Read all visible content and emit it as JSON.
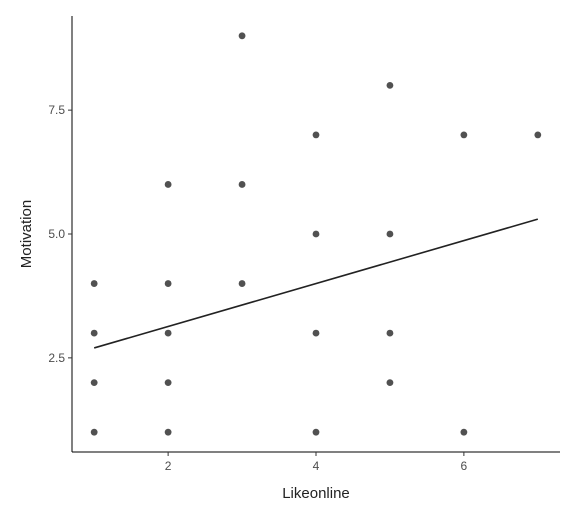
{
  "chart_data": {
    "type": "scatter",
    "title": "",
    "xlabel": "Likeonline",
    "ylabel": "Motivation",
    "xlim": [
      0.7,
      7.3
    ],
    "ylim": [
      0.6,
      9.4
    ],
    "x_ticks": [
      2,
      4,
      6
    ],
    "x_tick_labels": [
      "2",
      "4",
      "6"
    ],
    "y_ticks": [
      2.5,
      5.0,
      7.5
    ],
    "y_tick_labels": [
      "2.5",
      "5.0",
      "7.5"
    ],
    "grid": false,
    "legend": "none",
    "point_color": "#333333",
    "line_color": "#222222",
    "points": [
      {
        "x": 1,
        "y": 1
      },
      {
        "x": 1,
        "y": 2
      },
      {
        "x": 1,
        "y": 3
      },
      {
        "x": 1,
        "y": 4
      },
      {
        "x": 2,
        "y": 1
      },
      {
        "x": 2,
        "y": 2
      },
      {
        "x": 2,
        "y": 3
      },
      {
        "x": 2,
        "y": 4
      },
      {
        "x": 2,
        "y": 6
      },
      {
        "x": 3,
        "y": 4
      },
      {
        "x": 3,
        "y": 6
      },
      {
        "x": 3,
        "y": 9
      },
      {
        "x": 4,
        "y": 1
      },
      {
        "x": 4,
        "y": 3
      },
      {
        "x": 4,
        "y": 5
      },
      {
        "x": 4,
        "y": 7
      },
      {
        "x": 5,
        "y": 2
      },
      {
        "x": 5,
        "y": 3
      },
      {
        "x": 5,
        "y": 5
      },
      {
        "x": 5,
        "y": 8
      },
      {
        "x": 6,
        "y": 1
      },
      {
        "x": 6,
        "y": 7
      },
      {
        "x": 7,
        "y": 7
      }
    ],
    "trend_line": {
      "x": [
        1,
        7
      ],
      "y": [
        2.7,
        5.3
      ]
    }
  }
}
